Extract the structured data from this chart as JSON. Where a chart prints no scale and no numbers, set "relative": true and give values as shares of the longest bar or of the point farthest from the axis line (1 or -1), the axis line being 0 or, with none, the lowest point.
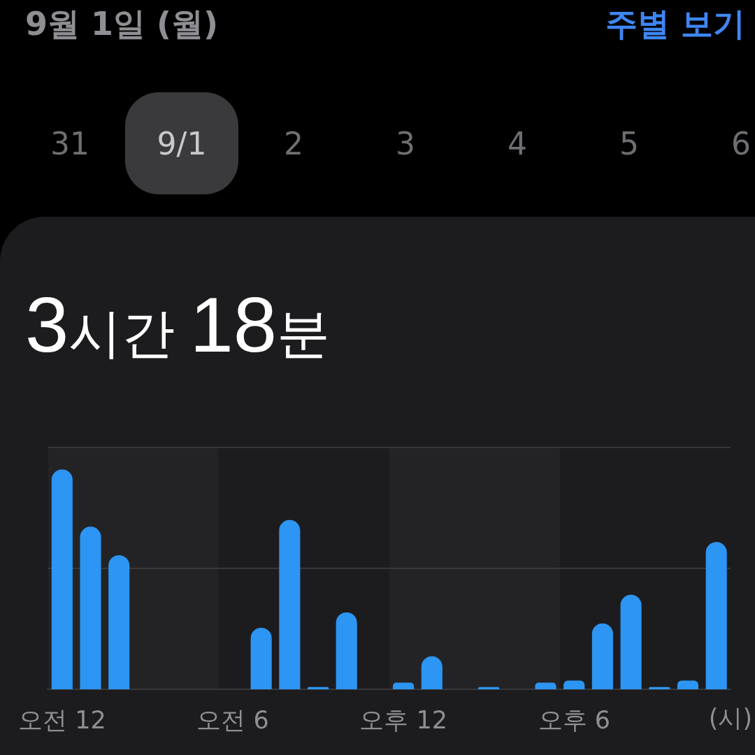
{
  "chart_data": {
    "type": "bar",
    "title": "3시간 18분",
    "xlabel": "(시)",
    "annotations": [
      "9월 1일 (월)",
      "주별 보기",
      "31",
      "9/1",
      "2",
      "3",
      "4",
      "5",
      "6"
    ],
    "categories": [
      "오전 12",
      null,
      null,
      null,
      null,
      null,
      "오전 6",
      null,
      null,
      null,
      null,
      null,
      "오후 12",
      null,
      null,
      null,
      null,
      null,
      "오후 6",
      null,
      null,
      null,
      null,
      null
    ],
    "values": [
      1,
      0.74,
      0.61,
      0,
      0,
      0,
      0,
      0.28,
      0.77,
      0.01,
      0.35,
      null,
      0.03,
      0.15,
      0,
      0.01,
      0,
      0.03,
      0.04,
      0.3,
      0.43,
      0.01,
      0.04,
      0.67
    ],
    "color": "#2d95f3",
    "relative": true,
    "bands": [
      {
        "axis": "x",
        "from": "오전 12",
        "to": "오전 6",
        "color": "#232325"
      },
      {
        "axis": "x",
        "from": "오후 12",
        "to": "오후 6",
        "color": "#232325"
      }
    ],
    "ref_lines": [
      {
        "axis": "y",
        "value": 0.55,
        "color": "#38383a"
      },
      {
        "axis": "y",
        "value": 1.1,
        "color": "#38383a"
      }
    ],
    "tick_labels": "x"
  }
}
